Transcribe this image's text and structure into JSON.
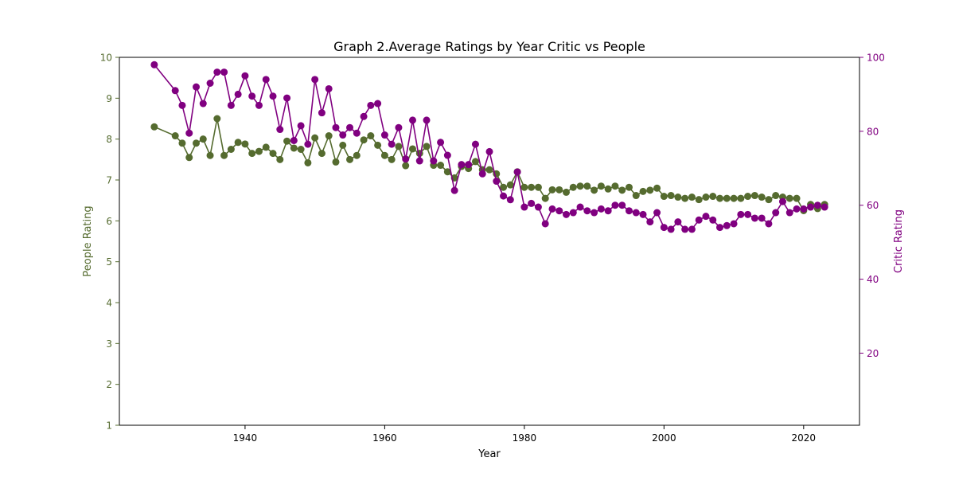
{
  "chart_data": {
    "type": "line",
    "title": "Graph 2.Average Ratings by Year Critic vs People",
    "xlabel": "Year",
    "ylabel_left": "People Rating",
    "ylabel_right": "Critic Rating",
    "xlim": [
      1922,
      2028
    ],
    "ylim_left": [
      1,
      10
    ],
    "ylim_right": [
      0.5,
      100
    ],
    "xticks": [
      1940,
      1960,
      1980,
      2000,
      2020
    ],
    "yticks_left": [
      1,
      2,
      3,
      4,
      5,
      6,
      7,
      8,
      9,
      10
    ],
    "yticks_right": [
      20,
      40,
      60,
      80,
      100
    ],
    "grid": false,
    "legend": "none",
    "colors": {
      "people": "#556b2f",
      "critic": "#800080",
      "axis": "#000000"
    },
    "x": [
      1927,
      1930,
      1931,
      1932,
      1933,
      1934,
      1935,
      1936,
      1937,
      1938,
      1939,
      1940,
      1941,
      1942,
      1943,
      1944,
      1945,
      1946,
      1947,
      1948,
      1949,
      1950,
      1951,
      1952,
      1953,
      1954,
      1955,
      1956,
      1957,
      1958,
      1959,
      1960,
      1961,
      1962,
      1963,
      1964,
      1965,
      1966,
      1967,
      1968,
      1969,
      1970,
      1971,
      1972,
      1973,
      1974,
      1975,
      1976,
      1977,
      1978,
      1979,
      1980,
      1981,
      1982,
      1983,
      1984,
      1985,
      1986,
      1987,
      1988,
      1989,
      1990,
      1991,
      1992,
      1993,
      1994,
      1995,
      1996,
      1997,
      1998,
      1999,
      2000,
      2001,
      2002,
      2003,
      2004,
      2005,
      2006,
      2007,
      2008,
      2009,
      2010,
      2011,
      2012,
      2013,
      2014,
      2015,
      2016,
      2017,
      2018,
      2019,
      2020,
      2021,
      2022,
      2023
    ],
    "series": [
      {
        "name": "People Rating",
        "axis": "left",
        "values": [
          8.3,
          8.08,
          7.9,
          7.55,
          7.9,
          8.0,
          7.6,
          8.5,
          7.6,
          7.75,
          7.92,
          7.88,
          7.65,
          7.7,
          7.8,
          7.65,
          7.5,
          7.95,
          7.78,
          7.75,
          7.42,
          8.03,
          7.65,
          8.08,
          7.44,
          7.85,
          7.5,
          7.6,
          7.98,
          8.08,
          7.85,
          7.6,
          7.5,
          7.82,
          7.35,
          7.76,
          7.65,
          7.82,
          7.36,
          7.36,
          7.2,
          7.05,
          7.33,
          7.28,
          7.45,
          7.25,
          7.25,
          7.15,
          6.82,
          6.88,
          7.2,
          6.82,
          6.82,
          6.82,
          6.55,
          6.76,
          6.76,
          6.7,
          6.82,
          6.85,
          6.85,
          6.75,
          6.85,
          6.78,
          6.85,
          6.75,
          6.82,
          6.62,
          6.72,
          6.75,
          6.8,
          6.6,
          6.62,
          6.58,
          6.55,
          6.58,
          6.52,
          6.58,
          6.6,
          6.55,
          6.55,
          6.55,
          6.55,
          6.6,
          6.62,
          6.58,
          6.52,
          6.62,
          6.58,
          6.55,
          6.55,
          6.25,
          6.4,
          6.3,
          6.4
        ]
      },
      {
        "name": "Critic Rating",
        "axis": "right",
        "values": [
          98,
          91,
          87,
          79.5,
          92,
          87.5,
          93,
          96,
          96,
          87,
          90,
          95,
          89.5,
          87,
          94,
          89.5,
          80.5,
          89,
          77.5,
          81.5,
          76.5,
          94,
          85,
          91.5,
          81,
          79,
          81,
          79.5,
          84,
          87,
          87.5,
          79,
          76.5,
          81,
          72.5,
          83,
          72,
          83,
          72,
          77,
          73.5,
          64,
          71,
          71,
          76.5,
          68.5,
          74.5,
          66.5,
          62.5,
          61.5,
          69,
          59.5,
          60.5,
          59.5,
          55,
          59,
          58.5,
          57.5,
          58,
          59.5,
          58.5,
          58,
          59,
          58.5,
          60,
          60,
          58.5,
          58,
          57.5,
          55.5,
          58,
          54,
          53.5,
          55.5,
          53.5,
          53.5,
          56,
          57,
          56,
          54,
          54.5,
          55,
          57.5,
          57.5,
          56.5,
          56.5,
          55,
          58,
          61,
          58,
          59,
          59,
          59.5,
          60,
          59.5
        ]
      }
    ]
  }
}
